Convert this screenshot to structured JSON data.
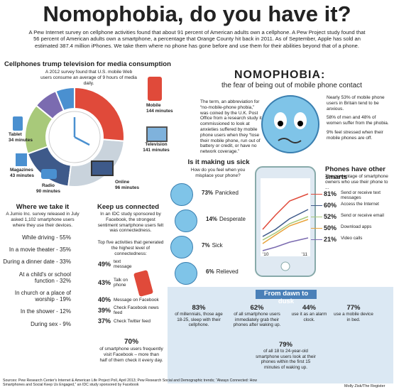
{
  "header": {
    "title": "Nomophobia, do you have it?",
    "intro": "A Pew Internet survey on cellphone activities found that about 91 percent of American adults own a cellphone. A Pew Project study found that 56 percent of American adults own a smartphone, a percentage that Orange County hit back in 2011. As of September, Apple has sold an estimated 387.4 million iPhones. We take them where no phone has gone before and use them for their abilities beyond that of a phone."
  },
  "media": {
    "title": "Cellphones trump television for media consumption",
    "subtitle": "A 2012 survey found that U.S. mobile Web users consume an average of 9 hours of media daily.",
    "items": [
      {
        "label": "Mobile",
        "minutes": "144 minutes"
      },
      {
        "label": "Television",
        "minutes": "141 minutes"
      },
      {
        "label": "Online",
        "minutes": "96 minutes"
      },
      {
        "label": "Radio",
        "minutes": "90 minutes"
      },
      {
        "label": "Magazines",
        "minutes": "43 minutes"
      },
      {
        "label": "Tablet",
        "minutes": "34 minutes"
      }
    ]
  },
  "nomophobia": {
    "title": "NOMOPHOBIA:",
    "subtitle": "the fear of being out of mobile phone contact",
    "body": "The term, an abbreviation for “no-mobile-phone phobia,” was coined by the U.K. Post Office from a research study it commissioned to look at anxieties suffered by mobile phone users when they “lose their mobile phone, run out of battery or credit, or have no network coverage.”",
    "stats": [
      "Nearly 53% of mobile phone users in Britain tend to be anxious.",
      "58% of men and 48% of women suffer from the phobia.",
      "9% feel stressed when their mobile phones are off."
    ]
  },
  "sick": {
    "title": "Is it making us sick",
    "subtitle": "How do you feel when you misplace your phone?",
    "items": [
      {
        "pct": "73%",
        "label": "Panicked"
      },
      {
        "pct": "14%",
        "label": "Desperate"
      },
      {
        "pct": "7%",
        "label": "Sick"
      },
      {
        "pct": "6%",
        "label": "Relieved"
      }
    ]
  },
  "smarts": {
    "title": "Phones have other smarts",
    "subtitle": "The percentage of smartphone owners who use their phone to ...",
    "years": [
      "'10",
      "'11"
    ],
    "items": [
      {
        "pct": "81%",
        "label": "Send or receive text messages"
      },
      {
        "pct": "60%",
        "label": "Access the Internet"
      },
      {
        "pct": "52%",
        "label": "Send or receive email"
      },
      {
        "pct": "50%",
        "label": "Download apps"
      },
      {
        "pct": "21%",
        "label": "Video calls"
      }
    ]
  },
  "where": {
    "title": "Where we take it",
    "subtitle": "A Jumio Inc. survey released in July asked 1,102 smartphone users where they use their devices.",
    "items": [
      "While driving - 55%",
      "In a movie theater - 35%",
      "During a dinner date - 33%",
      "At a child's or school function - 32%",
      "In church or a place of worship - 19%",
      "In the shower - 12%",
      "During sex - 9%"
    ]
  },
  "connected": {
    "title": "Keep us connected",
    "subtitle": "In an IDC study sponsored by Facebook, the strongest sentiment smartphone users felt was connectedness.",
    "list_title": "Top five activities that generated the highest level of connectedness:",
    "items": [
      {
        "pct": "49%",
        "label": "text message"
      },
      {
        "pct": "43%",
        "label": "Talk on phone"
      },
      {
        "pct": "40%",
        "label": "Message on Facebook"
      },
      {
        "pct": "39%",
        "label": "Check Facebook news feed"
      },
      {
        "pct": "37%",
        "label": "Check Twitter feed"
      }
    ],
    "footer_pct": "70%",
    "footer": "of smartphone users frequently visit Facebook – more than half of them check it every day."
  },
  "dawn": {
    "title": "From dawn to dusk",
    "items": [
      {
        "pct": "83%",
        "text": "of millennials, those age 18-25, sleep with their cellphone."
      },
      {
        "pct": "62%",
        "text": "of all smartphone users immediately grab their phones after waking up."
      },
      {
        "pct": "44%",
        "text": "use it as an alarm clock."
      },
      {
        "pct": "77%",
        "text": "use a mobile device in bed."
      },
      {
        "pct": "79%",
        "text": "of all 18 to 24-year-old smartphone users look at their phones within the first 15 minutes of waking up."
      }
    ]
  },
  "footer": {
    "sources": "Sources: Pew Research Center's Internet & American Life Project Poll, April 2013; Pew Research Social and Demographic trends; “Always Connected: How Smartphones and Social Keep Us Engaged,” an IDC study sponsored by Facebook",
    "credit": "Molly Zisk/The Register"
  }
}
